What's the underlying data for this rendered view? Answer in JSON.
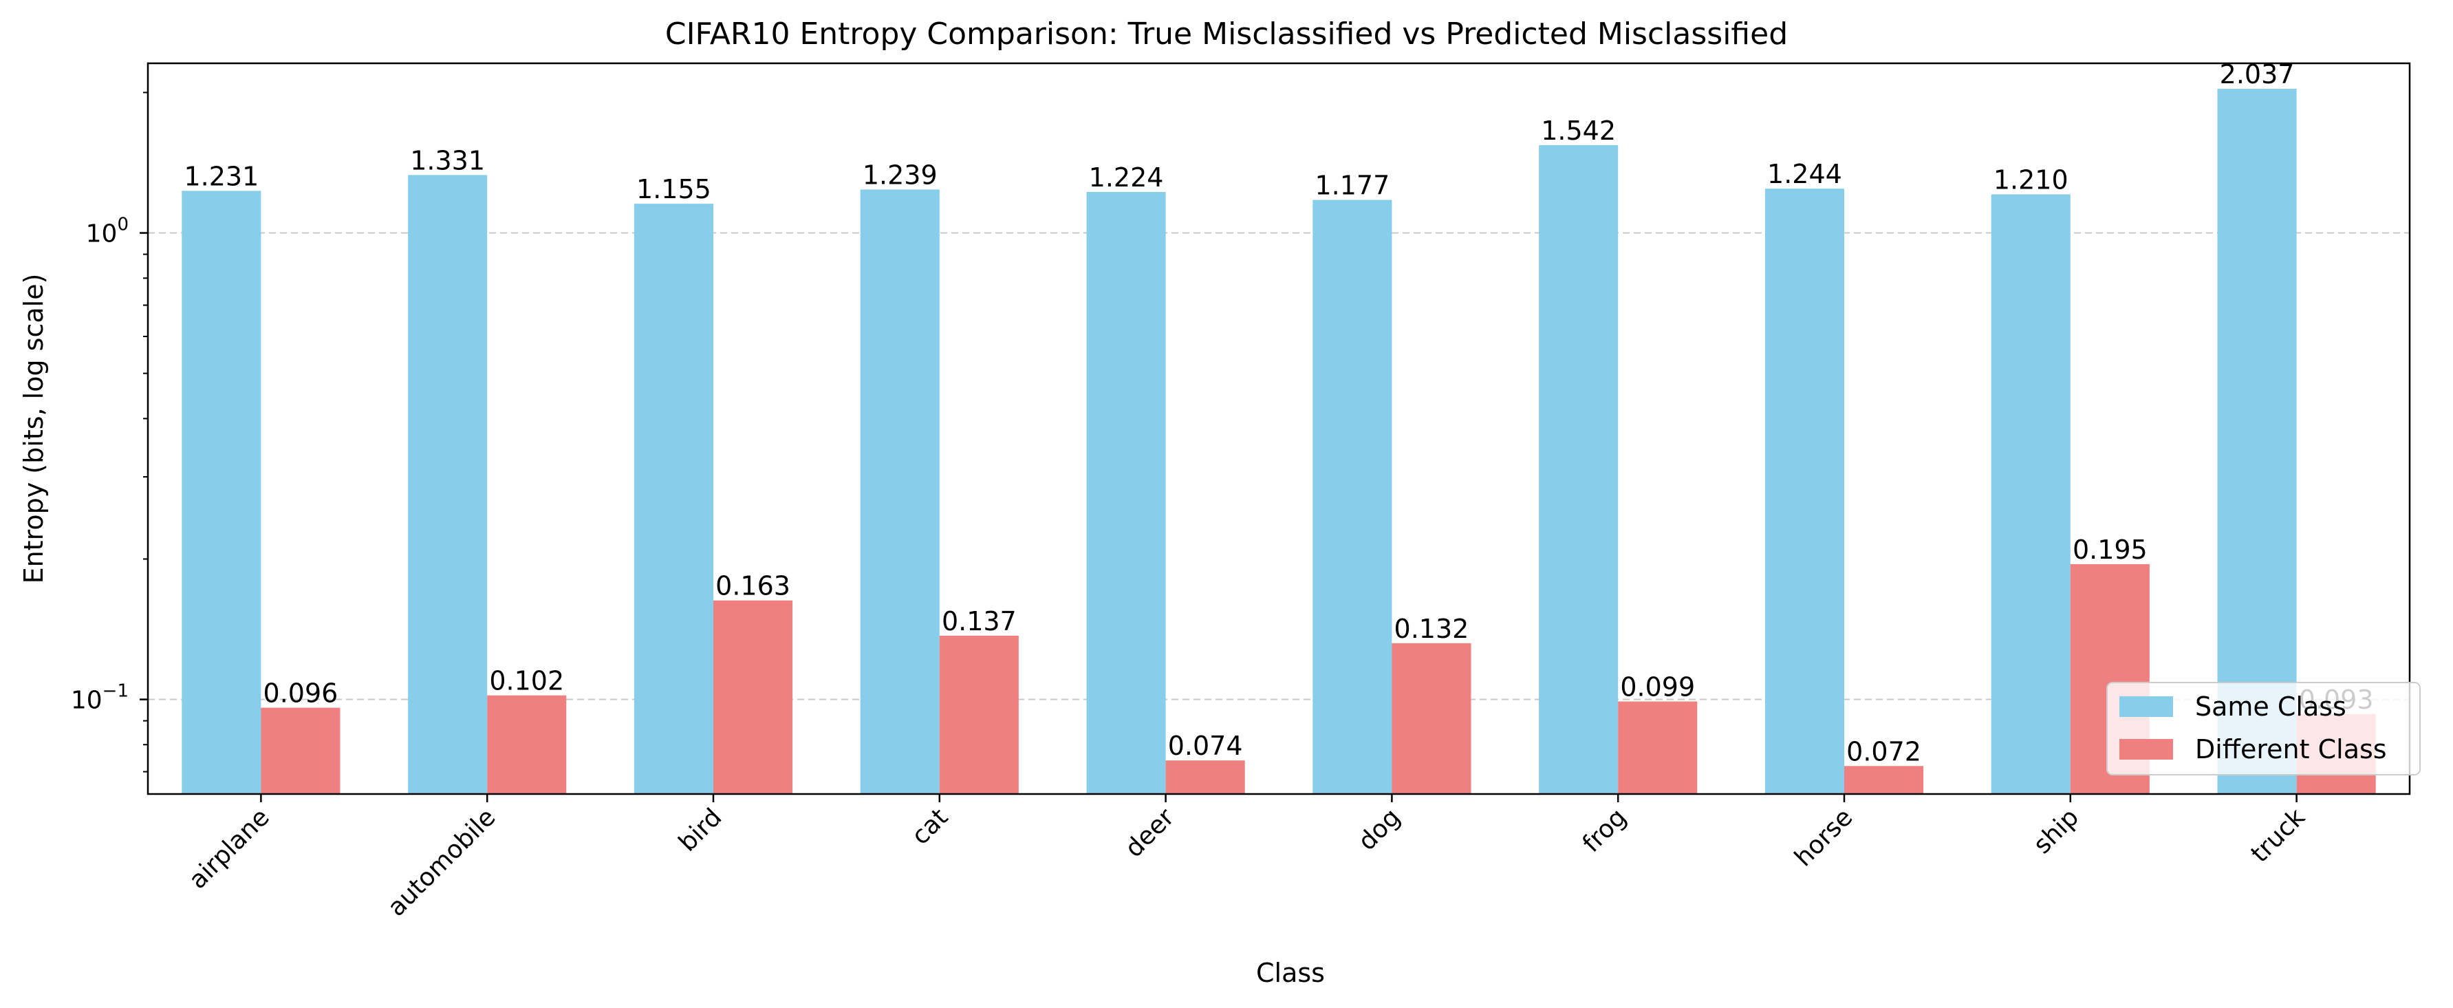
{
  "chart_data": {
    "type": "bar",
    "title": "CIFAR10 Entropy Comparison: True Misclassified vs Predicted Misclassified",
    "xlabel": "Class",
    "ylabel": "Entropy (bits, log scale)",
    "yscale": "log",
    "ylim": [
      0.0627,
      2.31
    ],
    "ytick_labels": [
      {
        "value": 1,
        "base": "10",
        "exp": "0"
      },
      {
        "value": 0.1,
        "base": "10",
        "exp": "−1"
      }
    ],
    "grid": "y-major-dashed",
    "legend_position": "lower-right",
    "categories": [
      "airplane",
      "automobile",
      "bird",
      "cat",
      "deer",
      "dog",
      "frog",
      "horse",
      "ship",
      "truck"
    ],
    "series": [
      {
        "name": "Same Class",
        "color": "#87ceeb",
        "values": [
          1.231,
          1.331,
          1.155,
          1.239,
          1.224,
          1.177,
          1.542,
          1.244,
          1.21,
          2.037
        ],
        "labels": [
          "1.231",
          "1.331",
          "1.155",
          "1.239",
          "1.224",
          "1.177",
          "1.542",
          "1.244",
          "1.210",
          "2.037"
        ]
      },
      {
        "name": "Different Class",
        "color": "#f08080",
        "values": [
          0.096,
          0.102,
          0.163,
          0.137,
          0.074,
          0.132,
          0.099,
          0.072,
          0.195,
          0.093
        ],
        "labels": [
          "0.096",
          "0.102",
          "0.163",
          "0.137",
          "0.074",
          "0.132",
          "0.099",
          "0.072",
          "0.195",
          "0.093"
        ]
      }
    ]
  }
}
